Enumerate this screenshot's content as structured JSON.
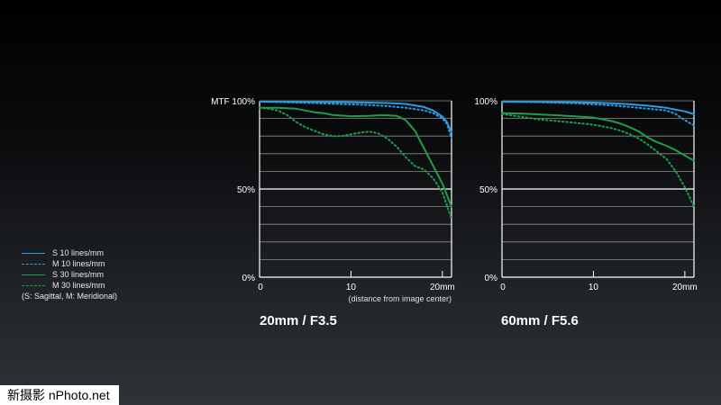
{
  "chart_data": [
    {
      "type": "line",
      "caption": "20mm / F3.5",
      "xlim": [
        0,
        21
      ],
      "ylim": [
        0,
        100
      ],
      "x_ticks": [
        {
          "value": 0,
          "label": "0"
        },
        {
          "value": 10,
          "label": "10"
        },
        {
          "value": 20,
          "label": "20mm"
        }
      ],
      "y_ticks": [
        {
          "value": 100,
          "label": "MTF 100%"
        },
        {
          "value": 50,
          "label": "50%"
        },
        {
          "value": 0,
          "label": "0%"
        }
      ],
      "xlabel": "(distance from image center)",
      "grid": true,
      "series": [
        {
          "name": "S 10 lines/mm",
          "color": "#2b9be0",
          "style": "solid",
          "x": [
            0,
            2,
            4,
            6,
            8,
            10,
            12,
            14,
            16,
            18,
            19,
            20,
            20.5,
            21
          ],
          "y": [
            99.5,
            99.5,
            99.4,
            99.4,
            99.3,
            99.2,
            99,
            98.7,
            98.2,
            96.5,
            94.5,
            91,
            88,
            82
          ]
        },
        {
          "name": "M 10 lines/mm",
          "color": "#2b9be0",
          "style": "dotted",
          "x": [
            0,
            2,
            4,
            6,
            8,
            10,
            12,
            14,
            16,
            18,
            19,
            20,
            20.5,
            21
          ],
          "y": [
            99.5,
            99.3,
            99,
            98.7,
            98.3,
            98,
            97.6,
            97,
            96,
            94.5,
            93,
            90,
            87,
            79
          ]
        },
        {
          "name": "S 30 lines/mm",
          "color": "#1e9e4a",
          "style": "solid",
          "x": [
            0,
            2,
            3,
            4,
            5,
            6,
            7,
            8,
            10,
            12,
            13,
            14,
            15,
            16,
            17,
            18,
            19,
            20,
            21
          ],
          "y": [
            96,
            96,
            95.8,
            95.5,
            94.5,
            93.5,
            93,
            92,
            91.3,
            91.5,
            91.8,
            91.8,
            91.5,
            89,
            83,
            73,
            63,
            53,
            40
          ]
        },
        {
          "name": "M 30 lines/mm",
          "color": "#1e9e4a",
          "style": "dotted",
          "x": [
            0,
            1,
            2,
            3,
            4,
            5,
            6,
            7,
            8,
            9,
            10,
            11,
            12,
            13,
            14,
            15,
            16,
            17,
            18,
            19,
            20,
            21
          ],
          "y": [
            96,
            95.5,
            94.5,
            92,
            88,
            85,
            83,
            81,
            80,
            80,
            81,
            82,
            82.5,
            81.5,
            78.5,
            74,
            68,
            63,
            61,
            56,
            48,
            33
          ]
        }
      ]
    },
    {
      "type": "line",
      "caption": "60mm / F5.6",
      "xlim": [
        0,
        21
      ],
      "ylim": [
        0,
        100
      ],
      "x_ticks": [
        {
          "value": 0,
          "label": "0"
        },
        {
          "value": 10,
          "label": "10"
        },
        {
          "value": 20,
          "label": "20mm"
        }
      ],
      "y_ticks": [
        {
          "value": 100,
          "label": "100%"
        },
        {
          "value": 50,
          "label": "50%"
        },
        {
          "value": 0,
          "label": "0%"
        }
      ],
      "grid": true,
      "series": [
        {
          "name": "S 10 lines/mm",
          "color": "#2b9be0",
          "style": "solid",
          "x": [
            0,
            4,
            8,
            10,
            12,
            14,
            16,
            18,
            20,
            21
          ],
          "y": [
            99.5,
            99.4,
            99.2,
            99,
            98.6,
            98,
            97.2,
            96,
            94,
            92.5
          ]
        },
        {
          "name": "M 10 lines/mm",
          "color": "#2b9be0",
          "style": "dotted",
          "x": [
            0,
            4,
            8,
            10,
            12,
            14,
            16,
            18,
            19,
            20,
            21
          ],
          "y": [
            99.5,
            99.2,
            98.6,
            98,
            97.4,
            96.5,
            95.5,
            94.5,
            92.5,
            89,
            86
          ]
        },
        {
          "name": "S 30 lines/mm",
          "color": "#1e9e4a",
          "style": "solid",
          "x": [
            0,
            2,
            4,
            6,
            8,
            10,
            12,
            13,
            14,
            15,
            16,
            17,
            18,
            19,
            20,
            21
          ],
          "y": [
            93,
            92.8,
            92.3,
            91.8,
            91.2,
            90.5,
            88.5,
            87,
            85,
            82.5,
            79,
            76.5,
            74.5,
            72,
            69,
            66
          ]
        },
        {
          "name": "M 30 lines/mm",
          "color": "#1e9e4a",
          "style": "dotted",
          "x": [
            0,
            2,
            4,
            6,
            8,
            10,
            12,
            13,
            14,
            15,
            16,
            17,
            18,
            19,
            20,
            21
          ],
          "y": [
            92.5,
            91,
            89.5,
            88.5,
            87.5,
            86.5,
            84.5,
            83,
            81,
            78.5,
            75,
            71,
            67,
            60,
            51,
            40
          ]
        }
      ]
    }
  ],
  "legend": {
    "items": [
      {
        "label": "S  10 lines/mm",
        "color": "#2b9be0",
        "style": "solid"
      },
      {
        "label": "M 10 lines/mm",
        "color": "#2b9be0",
        "style": "dashed"
      },
      {
        "label": "S  30 lines/mm",
        "color": "#1e9e4a",
        "style": "solid"
      },
      {
        "label": "M 30 lines/mm",
        "color": "#1e9e4a",
        "style": "dashed"
      }
    ],
    "note": "(S: Sagittal, M: Meridional)"
  },
  "watermark": "新摄影 nPhoto.net"
}
